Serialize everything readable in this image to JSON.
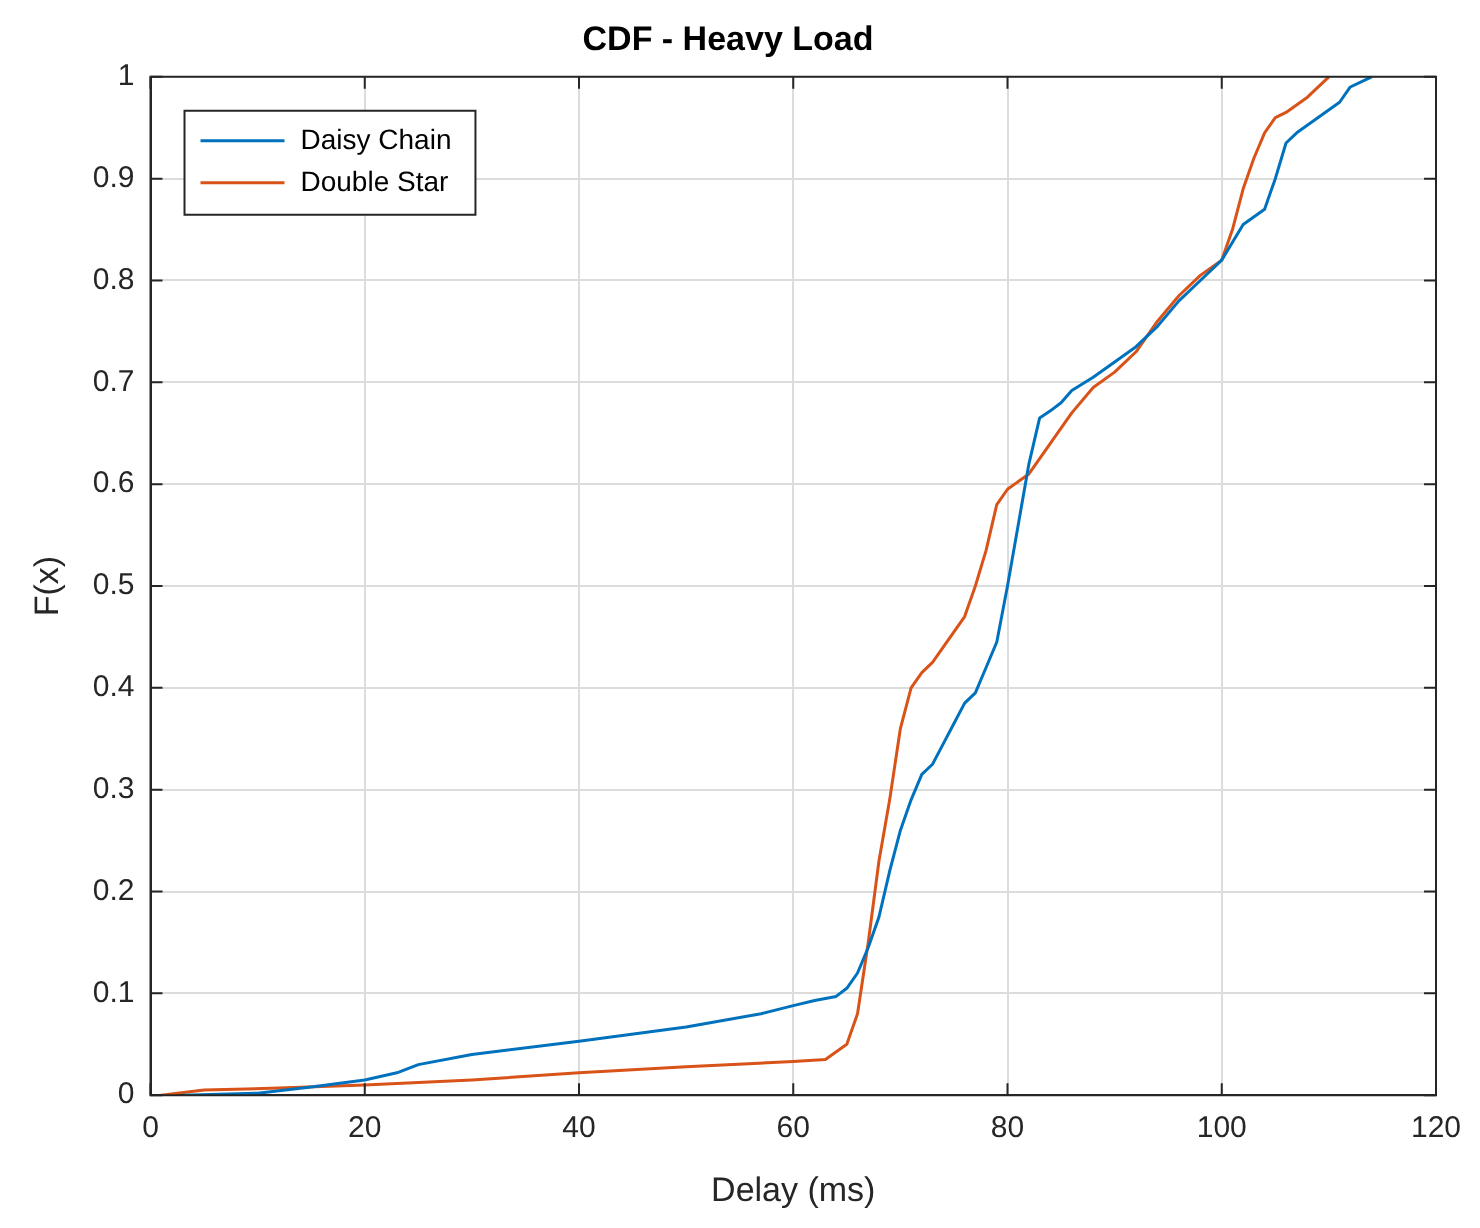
{
  "chart_data": {
    "type": "line",
    "title": "CDF - Heavy Load",
    "xlabel": "Delay (ms)",
    "ylabel": "F(x)",
    "xlim": [
      0,
      120
    ],
    "xticks": [
      0,
      20,
      40,
      60,
      80,
      100,
      120
    ],
    "ylim": [
      0,
      1
    ],
    "yticks": [
      0,
      0.1,
      0.2,
      0.3,
      0.4,
      0.5,
      0.6,
      0.7,
      0.8,
      0.9,
      1
    ],
    "grid": true,
    "legend": "top left",
    "marker": "none",
    "line_style": "solid",
    "series": [
      {
        "name": "Daisy Chain",
        "color": "#0072bd",
        "x": [
          3,
          10,
          15,
          20,
          23,
          25,
          30,
          40,
          50,
          57,
          60,
          62,
          64,
          65,
          66,
          67,
          68,
          69,
          70,
          71,
          72,
          73,
          74,
          75,
          76,
          77,
          78,
          79,
          80,
          81,
          82,
          83,
          84,
          85,
          86,
          88,
          90,
          92,
          94,
          96,
          98,
          100,
          102,
          104,
          105,
          106,
          107,
          109,
          111,
          112,
          114
        ],
        "values": [
          0,
          0.002,
          0.008,
          0.015,
          0.022,
          0.03,
          0.04,
          0.053,
          0.067,
          0.08,
          0.088,
          0.093,
          0.097,
          0.105,
          0.12,
          0.145,
          0.175,
          0.22,
          0.26,
          0.29,
          0.315,
          0.325,
          0.345,
          0.365,
          0.385,
          0.395,
          0.42,
          0.445,
          0.5,
          0.56,
          0.62,
          0.665,
          0.672,
          0.68,
          0.692,
          0.705,
          0.72,
          0.735,
          0.755,
          0.78,
          0.8,
          0.82,
          0.855,
          0.87,
          0.9,
          0.935,
          0.945,
          0.96,
          0.975,
          0.99,
          1
        ]
      },
      {
        "name": "Double Star",
        "color": "#d95319",
        "x": [
          1,
          5,
          12,
          20,
          30,
          40,
          50,
          60,
          63,
          65,
          66,
          67,
          68,
          69,
          70,
          71,
          72,
          73,
          74,
          76,
          77,
          78,
          79,
          80,
          82,
          84,
          86,
          88,
          90,
          92,
          94,
          96,
          98,
          100,
          101,
          102,
          103,
          104,
          105,
          106,
          108,
          110
        ],
        "values": [
          0,
          0.005,
          0.007,
          0.01,
          0.015,
          0.022,
          0.028,
          0.033,
          0.035,
          0.05,
          0.08,
          0.15,
          0.23,
          0.29,
          0.36,
          0.4,
          0.415,
          0.425,
          0.44,
          0.47,
          0.5,
          0.535,
          0.58,
          0.595,
          0.61,
          0.64,
          0.67,
          0.695,
          0.71,
          0.73,
          0.76,
          0.785,
          0.805,
          0.82,
          0.85,
          0.89,
          0.92,
          0.945,
          0.96,
          0.965,
          0.98,
          1
        ]
      }
    ]
  }
}
